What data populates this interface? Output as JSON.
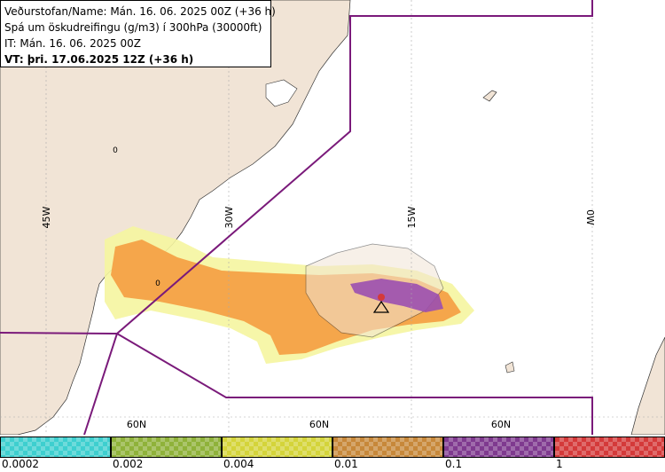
{
  "header": {
    "line1": "Veðurstofan/Name: Mán. 16. 06. 2025 00Z (+36 h)",
    "line2": "Spá um öskudreifingu (g/m3) í 300hPa (30000ft)",
    "line3": "IT: Mán. 16. 06. 2025 00Z",
    "line4": "VT: þri. 17.06.2025 12Z (+36 h)"
  },
  "map": {
    "longitude_labels": [
      "45W",
      "30W",
      "15W",
      "0W"
    ],
    "latitude_labels": [
      "60N",
      "60N",
      "60N"
    ],
    "contour_labels": [
      "0",
      "0"
    ],
    "colors": {
      "land": "#f1e4d6",
      "sea": "#ffffff",
      "boundary": "#7a1a7a",
      "ash_low": "#f5f5a0",
      "ash_mid": "#f5a64b",
      "ash_high": "#9b4fb0"
    }
  },
  "legend": {
    "ticks": [
      "0.0002",
      "0.002",
      "0.004",
      "0.01",
      "0.1",
      "1"
    ],
    "colors": [
      "#3ecfcf",
      "#8fb23a",
      "#d4d43a",
      "#c7883a",
      "#7f3a8f",
      "#d43a3a"
    ]
  }
}
